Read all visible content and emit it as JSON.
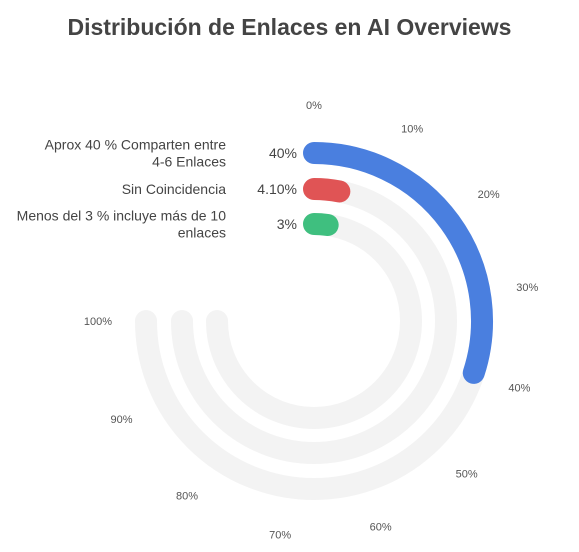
{
  "title": "Distribución de Enlaces en AI Overviews",
  "chart_data": {
    "type": "radial-bar",
    "title": "Distribución de Enlaces en AI Overviews",
    "axis_range": [
      0,
      100
    ],
    "axis_unit": "%",
    "ticks": [
      "0%",
      "10%",
      "20%",
      "30%",
      "40%",
      "50%",
      "60%",
      "70%",
      "80%",
      "90%",
      "100%"
    ],
    "grid": false,
    "legend": "none",
    "series": [
      {
        "name": "Aprox 40 % Comparten entre 4-6 Enlaces",
        "label_lines": [
          "Aprox 40 % Comparten entre",
          "4-6 Enlaces"
        ],
        "value": 40,
        "value_label": "40%",
        "color": "#4a7fdf"
      },
      {
        "name": "Sin Coincidencia",
        "label_lines": [
          "Sin Coincidencia"
        ],
        "value": 4.1,
        "value_label": "4.10%",
        "color": "#e05455"
      },
      {
        "name": "Menos del 3 % incluye más de 10 enlaces",
        "label_lines": [
          "Menos del 3 % incluye más de 10",
          "enlaces"
        ],
        "value": 3,
        "value_label": "3%",
        "color": "#3fbf7f"
      }
    ],
    "track_color": "#f3f3f3"
  }
}
